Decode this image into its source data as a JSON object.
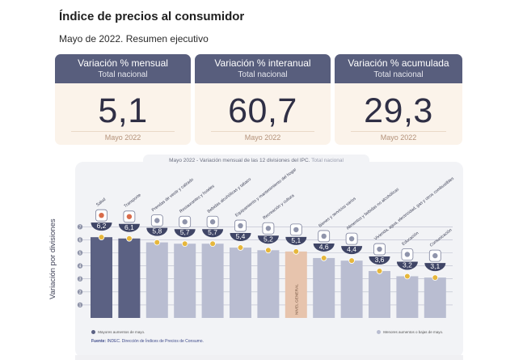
{
  "header": {
    "title": "Índice de precios al consumidor",
    "subtitle": "Mayo de 2022. Resumen ejecutivo"
  },
  "cards": [
    {
      "title": "Variación % mensual",
      "subtitle": "Total nacional",
      "value": "5,1",
      "period": "Mayo 2022"
    },
    {
      "title": "Variación % interanual",
      "subtitle": "Total nacional",
      "value": "60,7",
      "period": "Mayo 2022"
    },
    {
      "title": "Variación % acumulada",
      "subtitle": "Total nacional",
      "value": "29,3",
      "period": "Mayo 2022"
    }
  ],
  "panel": {
    "title_main": "Mayo 2022 - Variación mensual de las 12 divisiones del IPC.",
    "title_total": "Total nacional",
    "legend_left": "Mayores aumentos de mayo.",
    "legend_right": "Menores aumentos o bajas de mayo.",
    "source_label": "Fuente:",
    "source_text": "INDEC. Dirección de Índices de Precios de Consumo."
  },
  "colors": {
    "header": "#585e7d",
    "card_bg": "#fbf3ea",
    "bar_high": "#5b6183",
    "bar_low": "#b9bdd1",
    "bar_general": "#e7c4ad",
    "marker": "#e6b73c",
    "badge": "#3f4566"
  },
  "chart_data": {
    "type": "bar",
    "ylabel": "Variación por divisiones",
    "ylim": [
      0,
      7
    ],
    "yticks": [
      7,
      6,
      5,
      4,
      3,
      2,
      1
    ],
    "categories": [
      "Salud",
      "Transporte",
      "Prendas de vestir y calzado",
      "Restaurantes y hoteles",
      "Bebidas alcohólicas y tabaco",
      "Equipamiento y mantenimiento del hogar",
      "Recreación y cultura",
      "NIVEL GENERAL",
      "Bienes y servicios varios",
      "Alimentos y bebidas no alcohólicas",
      "Vivienda, agua, electricidad, gas y otros combustibles",
      "Educación",
      "Comunicación"
    ],
    "values": [
      6.2,
      6.1,
      5.8,
      5.7,
      5.7,
      5.4,
      5.2,
      5.1,
      4.6,
      4.4,
      3.6,
      3.2,
      3.1
    ],
    "value_labels": [
      "6,2",
      "6,1",
      "5,8",
      "5,7",
      "5,7",
      "5,4",
      "5,2",
      "5,1",
      "4,6",
      "4,4",
      "3,6",
      "3,2",
      "3,1"
    ],
    "groups": [
      "high",
      "high",
      "low",
      "low",
      "low",
      "low",
      "low",
      "general",
      "low",
      "low",
      "low",
      "low",
      "low"
    ],
    "icons": [
      "medical-kit-icon",
      "bus-icon",
      "shoe-icon",
      "cutlery-icon",
      "bottle-icon",
      "house-icon",
      "theater-icon",
      "basket-icon",
      "perfume-icon",
      "food-icon",
      "lightbulb-icon",
      "laptop-icon",
      "phone-icon"
    ]
  }
}
